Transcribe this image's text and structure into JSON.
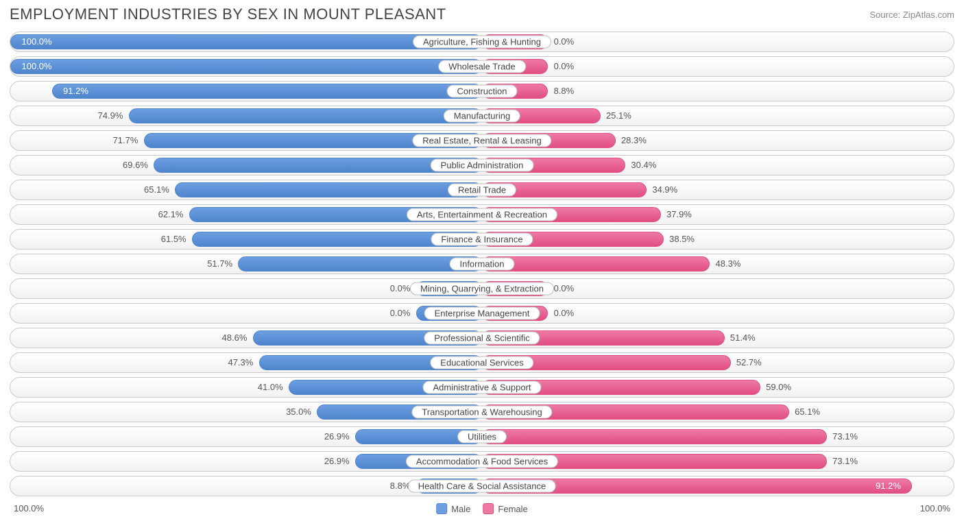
{
  "title": "EMPLOYMENT INDUSTRIES BY SEX IN MOUNT PLEASANT",
  "source_label": "Source: ZipAtlas.com",
  "axis_left": "100.0%",
  "axis_right": "100.0%",
  "colors": {
    "male_fill": "#6c9ee0",
    "male_border": "#4f85cd",
    "female_fill": "#ee7aa4",
    "female_border": "#e14e84",
    "track_border": "#c9c9c9",
    "track_bg_top": "#ffffff",
    "track_bg_bot": "#f1f1f1",
    "text": "#555555",
    "title_text": "#444444"
  },
  "legend": {
    "male": "Male",
    "female": "Female"
  },
  "half_width_pct_of_row": 50,
  "min_bar_display_pct": 14,
  "rows": [
    {
      "label": "Agriculture, Fishing & Hunting",
      "male": 100.0,
      "female": 0.0
    },
    {
      "label": "Wholesale Trade",
      "male": 100.0,
      "female": 0.0
    },
    {
      "label": "Construction",
      "male": 91.2,
      "female": 8.8
    },
    {
      "label": "Manufacturing",
      "male": 74.9,
      "female": 25.1
    },
    {
      "label": "Real Estate, Rental & Leasing",
      "male": 71.7,
      "female": 28.3
    },
    {
      "label": "Public Administration",
      "male": 69.6,
      "female": 30.4
    },
    {
      "label": "Retail Trade",
      "male": 65.1,
      "female": 34.9
    },
    {
      "label": "Arts, Entertainment & Recreation",
      "male": 62.1,
      "female": 37.9
    },
    {
      "label": "Finance & Insurance",
      "male": 61.5,
      "female": 38.5
    },
    {
      "label": "Information",
      "male": 51.7,
      "female": 48.3
    },
    {
      "label": "Mining, Quarrying, & Extraction",
      "male": 0.0,
      "female": 0.0
    },
    {
      "label": "Enterprise Management",
      "male": 0.0,
      "female": 0.0
    },
    {
      "label": "Professional & Scientific",
      "male": 48.6,
      "female": 51.4
    },
    {
      "label": "Educational Services",
      "male": 47.3,
      "female": 52.7
    },
    {
      "label": "Administrative & Support",
      "male": 41.0,
      "female": 59.0
    },
    {
      "label": "Transportation & Warehousing",
      "male": 35.0,
      "female": 65.1
    },
    {
      "label": "Utilities",
      "male": 26.9,
      "female": 73.1
    },
    {
      "label": "Accommodation & Food Services",
      "male": 26.9,
      "female": 73.1
    },
    {
      "label": "Health Care & Social Assistance",
      "male": 8.8,
      "female": 91.2
    }
  ]
}
